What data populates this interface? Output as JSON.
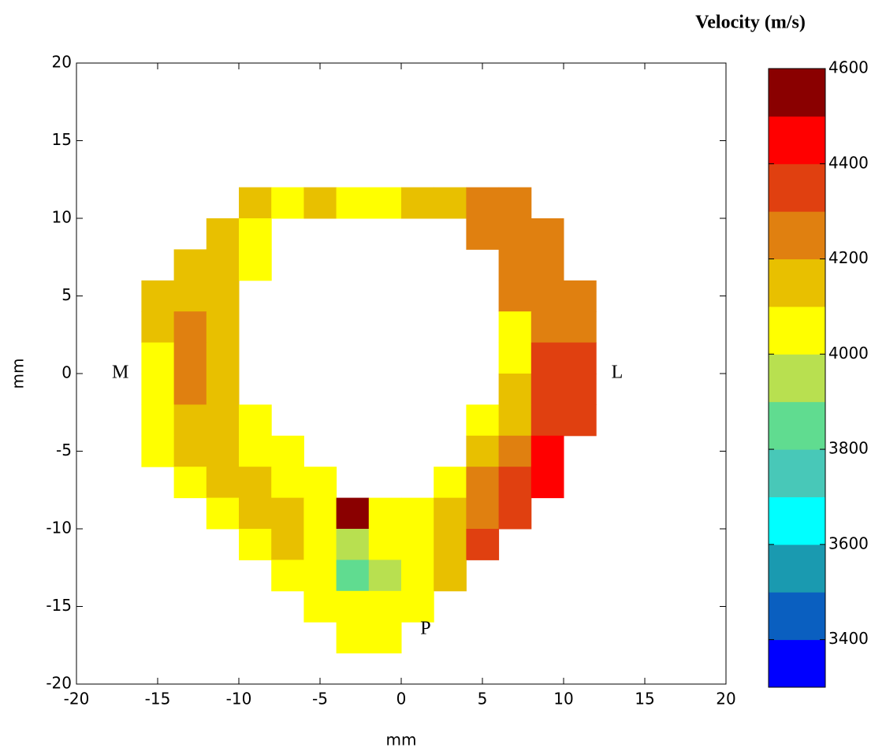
{
  "chart_data": {
    "type": "heatmap",
    "xlabel": "mm",
    "ylabel": "mm",
    "xlim": [
      -20,
      20
    ],
    "ylim": [
      -20,
      20
    ],
    "xticks": [
      -20,
      -15,
      -10,
      -5,
      0,
      5,
      10,
      15,
      20
    ],
    "yticks": [
      -20,
      -15,
      -10,
      -5,
      0,
      5,
      10,
      15,
      20
    ],
    "x": [
      -19,
      -17,
      -15,
      -13,
      -11,
      -9,
      -7,
      -5,
      -3,
      -1,
      1,
      3,
      5,
      7,
      9,
      11,
      13,
      15,
      17,
      19
    ],
    "y": [
      19,
      17,
      15,
      13,
      11,
      9,
      7,
      5,
      3,
      1,
      -1,
      -3,
      -5,
      -7,
      -9,
      -11,
      -13,
      -15,
      -17,
      -19
    ],
    "z": [
      [
        null,
        null,
        null,
        null,
        null,
        null,
        null,
        null,
        null,
        null,
        null,
        null,
        null,
        null,
        null,
        null,
        null,
        null,
        null,
        null
      ],
      [
        null,
        null,
        null,
        null,
        null,
        null,
        null,
        null,
        null,
        null,
        null,
        null,
        null,
        null,
        null,
        null,
        null,
        null,
        null,
        null
      ],
      [
        null,
        null,
        null,
        null,
        null,
        null,
        null,
        null,
        null,
        null,
        null,
        null,
        null,
        null,
        null,
        null,
        null,
        null,
        null,
        null
      ],
      [
        null,
        null,
        null,
        null,
        null,
        null,
        null,
        null,
        null,
        null,
        null,
        null,
        null,
        null,
        null,
        null,
        null,
        null,
        null,
        null
      ],
      [
        null,
        null,
        null,
        null,
        null,
        4100,
        4050,
        4100,
        4050,
        4000,
        4150,
        4180,
        4200,
        4220,
        null,
        null,
        null,
        null,
        null,
        null
      ],
      [
        null,
        null,
        null,
        null,
        4150,
        4050,
        null,
        null,
        null,
        null,
        null,
        null,
        4200,
        4250,
        4250,
        null,
        null,
        null,
        null,
        null
      ],
      [
        null,
        null,
        null,
        4150,
        4100,
        4000,
        null,
        null,
        null,
        null,
        null,
        null,
        null,
        4250,
        4250,
        null,
        null,
        null,
        null,
        null
      ],
      [
        null,
        null,
        4100,
        4150,
        4120,
        null,
        null,
        null,
        null,
        null,
        null,
        null,
        null,
        4200,
        4280,
        4250,
        null,
        null,
        null,
        null
      ],
      [
        null,
        null,
        4100,
        4200,
        4100,
        null,
        null,
        null,
        null,
        null,
        null,
        null,
        null,
        4000,
        4250,
        4280,
        null,
        null,
        null,
        null
      ],
      [
        null,
        null,
        4050,
        4200,
        4150,
        null,
        null,
        null,
        null,
        null,
        null,
        null,
        null,
        4020,
        4300,
        4300,
        null,
        null,
        null,
        null
      ],
      [
        null,
        null,
        4050,
        4200,
        4100,
        null,
        null,
        null,
        null,
        null,
        null,
        null,
        null,
        4100,
        4300,
        4300,
        null,
        null,
        null,
        null
      ],
      [
        null,
        null,
        4050,
        4180,
        4100,
        4020,
        null,
        null,
        null,
        null,
        null,
        null,
        4050,
        4150,
        4350,
        4320,
        null,
        null,
        null,
        null
      ],
      [
        null,
        null,
        4000,
        4100,
        4150,
        4050,
        4020,
        null,
        null,
        null,
        null,
        null,
        4100,
        4200,
        4450,
        null,
        null,
        null,
        null,
        null
      ],
      [
        null,
        null,
        null,
        4050,
        4150,
        4100,
        4050,
        4030,
        null,
        null,
        null,
        4050,
        4200,
        4300,
        4450,
        null,
        null,
        null,
        null,
        null
      ],
      [
        null,
        null,
        null,
        null,
        4050,
        4150,
        4100,
        4050,
        4550,
        4000,
        4050,
        4150,
        4280,
        4300,
        null,
        null,
        null,
        null,
        null,
        null
      ],
      [
        null,
        null,
        null,
        null,
        null,
        4050,
        4100,
        4050,
        3950,
        4000,
        4050,
        4150,
        4300,
        null,
        null,
        null,
        null,
        null,
        null,
        null
      ],
      [
        null,
        null,
        null,
        null,
        null,
        null,
        4050,
        4000,
        3850,
        3900,
        4030,
        4100,
        null,
        null,
        null,
        null,
        null,
        null,
        null,
        null
      ],
      [
        null,
        null,
        null,
        null,
        null,
        null,
        null,
        4000,
        4050,
        4000,
        4030,
        null,
        null,
        null,
        null,
        null,
        null,
        null,
        null,
        null
      ],
      [
        null,
        null,
        null,
        null,
        null,
        null,
        null,
        null,
        4030,
        4030,
        null,
        null,
        null,
        null,
        null,
        null,
        null,
        null,
        null,
        null
      ],
      [
        null,
        null,
        null,
        null,
        null,
        null,
        null,
        null,
        null,
        null,
        null,
        null,
        null,
        null,
        null,
        null,
        null,
        null,
        null,
        null
      ]
    ],
    "colorbar": {
      "title": "Velocity (m/s)",
      "lim": [
        3300,
        4600
      ],
      "ticks": [
        3400,
        3600,
        3800,
        4000,
        4200,
        4400,
        4600
      ],
      "colors": [
        "#0000ff",
        "#0a5fc0",
        "#1a9ab0",
        "#00ffff",
        "#48c8b8",
        "#60dc90",
        "#b8e050",
        "#ffff00",
        "#e8c000",
        "#e08010",
        "#e04010",
        "#ff0000",
        "#8a0000"
      ]
    },
    "annotations": [
      {
        "text": "M",
        "x": -17.3,
        "y": 0
      },
      {
        "text": "L",
        "x": 13.3,
        "y": 0
      },
      {
        "text": "P",
        "x": 1.5,
        "y": -16.5
      }
    ]
  }
}
